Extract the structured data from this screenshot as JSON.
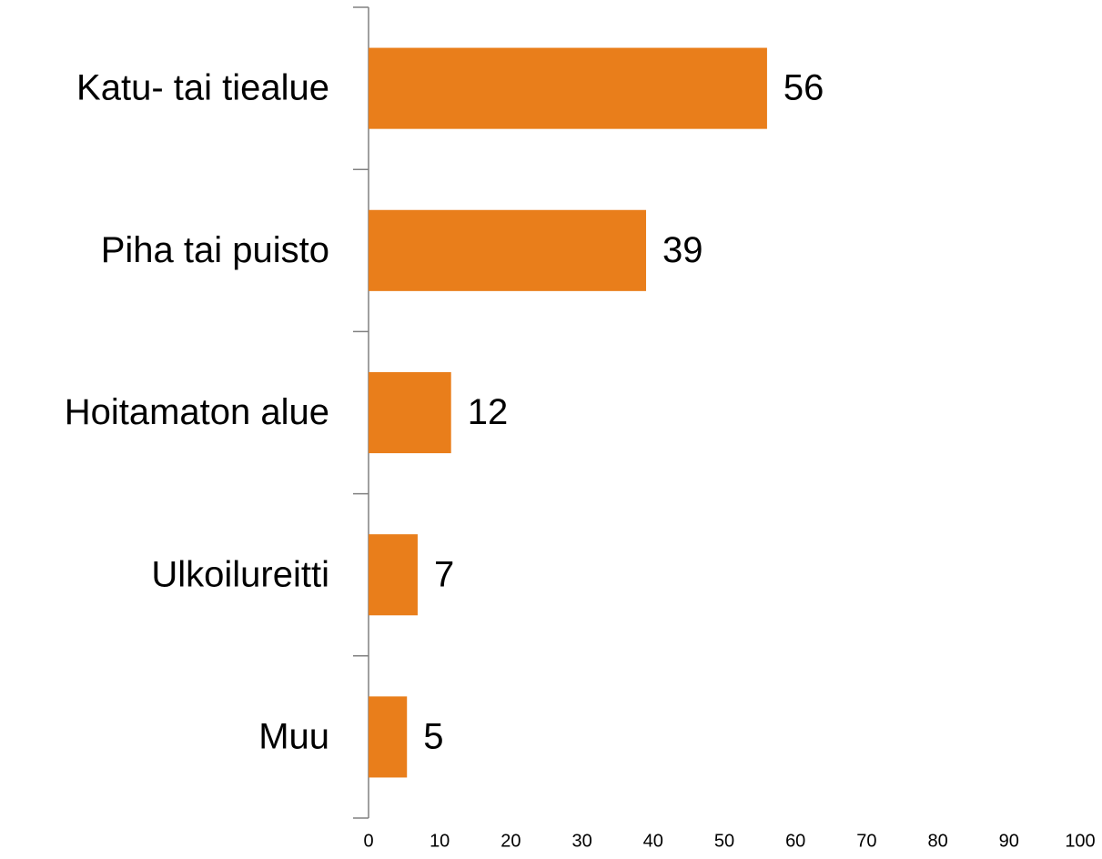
{
  "chart_data": {
    "type": "bar",
    "orientation": "horizontal",
    "categories": [
      "Katu- tai tiealue",
      "Piha tai puisto",
      "Hoitamaton alue",
      "Ulkoilureitti",
      "Muu"
    ],
    "values": [
      56,
      39,
      11.6,
      6.9,
      5.4
    ],
    "value_labels": [
      "56",
      "39",
      "12",
      "7",
      "5"
    ],
    "color": "#e97e1b",
    "xlim": [
      0,
      100
    ],
    "xticks": [
      0,
      10,
      20,
      30,
      40,
      50,
      60,
      70,
      80,
      90,
      100
    ]
  }
}
